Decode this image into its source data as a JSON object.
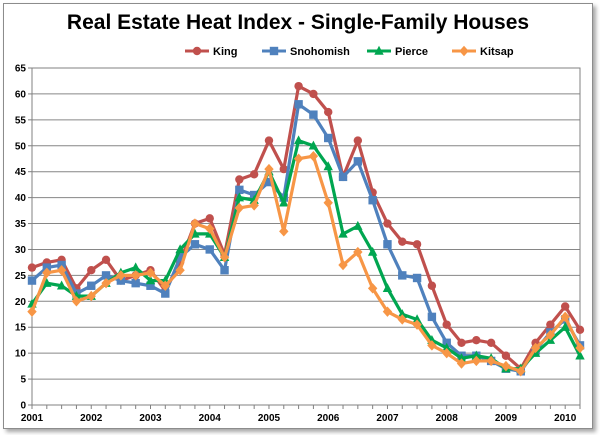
{
  "chart_data": {
    "type": "line",
    "title": "Real Estate Heat Index - Single-Family Houses",
    "xlabel": "",
    "ylabel": "",
    "ylim": [
      0,
      65
    ],
    "yticks": [
      0,
      5,
      10,
      15,
      20,
      25,
      30,
      35,
      40,
      45,
      50,
      55,
      60,
      65
    ],
    "xlim": [
      2001,
      2010.25
    ],
    "xticks": [
      "2001",
      "2002",
      "2003",
      "2004",
      "2005",
      "2006",
      "2007",
      "2008",
      "2009",
      "2010"
    ],
    "grid": true,
    "legend_position": "top-center",
    "x": [
      2001.0,
      2001.25,
      2001.5,
      2001.75,
      2002.0,
      2002.25,
      2002.5,
      2002.75,
      2003.0,
      2003.25,
      2003.5,
      2003.75,
      2004.0,
      2004.25,
      2004.5,
      2004.75,
      2005.0,
      2005.25,
      2005.5,
      2005.75,
      2006.0,
      2006.25,
      2006.5,
      2006.75,
      2007.0,
      2007.25,
      2007.5,
      2007.75,
      2008.0,
      2008.25,
      2008.5,
      2008.75,
      2009.0,
      2009.25,
      2009.5,
      2009.75,
      2010.0,
      2010.25
    ],
    "series": [
      {
        "name": "King",
        "color": "#c0504d",
        "marker": "circle",
        "values": [
          26.5,
          27.5,
          28,
          22.5,
          26,
          28,
          24,
          25,
          26,
          22,
          27.5,
          35,
          36,
          29,
          43.5,
          44.5,
          51,
          45.5,
          61.5,
          60,
          56.5,
          44,
          51,
          41,
          35,
          31.5,
          31,
          23,
          15.5,
          12,
          12.5,
          12,
          9.5,
          7,
          12,
          15.5,
          19,
          14.5
        ]
      },
      {
        "name": "Snohomish",
        "color": "#4f81bd",
        "marker": "square",
        "values": [
          24,
          26.5,
          27,
          21.5,
          23,
          25,
          24,
          23.5,
          23,
          21.5,
          28.5,
          31,
          30,
          26,
          41.5,
          40.5,
          43,
          40,
          58,
          56,
          51.5,
          44,
          47,
          39.5,
          31,
          25,
          24.5,
          17,
          12,
          9.5,
          9.5,
          8.5,
          7,
          6.5,
          10.5,
          14,
          16.5,
          11.5
        ]
      },
      {
        "name": "Pierce",
        "color": "#00a650",
        "marker": "triangle",
        "values": [
          19.5,
          23.5,
          23,
          21,
          21,
          23.5,
          25.5,
          26.5,
          24,
          24,
          30,
          33,
          33,
          28.5,
          40,
          39.5,
          45,
          39,
          51,
          50,
          46,
          33,
          34.5,
          29.5,
          22.5,
          17.5,
          16.5,
          12.5,
          11,
          9,
          9.5,
          9,
          7,
          7,
          10,
          12.5,
          15,
          9.5
        ]
      },
      {
        "name": "Kitsap",
        "color": "#f79646",
        "marker": "diamond",
        "values": [
          18,
          25.5,
          26,
          20,
          21,
          23.5,
          25,
          25,
          25.5,
          23,
          26,
          35,
          34,
          28.5,
          38,
          38.5,
          45.5,
          33.5,
          47.5,
          48,
          39,
          27,
          29.5,
          22.5,
          18,
          16.5,
          15.5,
          11.5,
          10,
          8,
          8.5,
          8.5,
          7.5,
          6.5,
          11,
          13.5,
          17,
          11
        ]
      }
    ]
  }
}
